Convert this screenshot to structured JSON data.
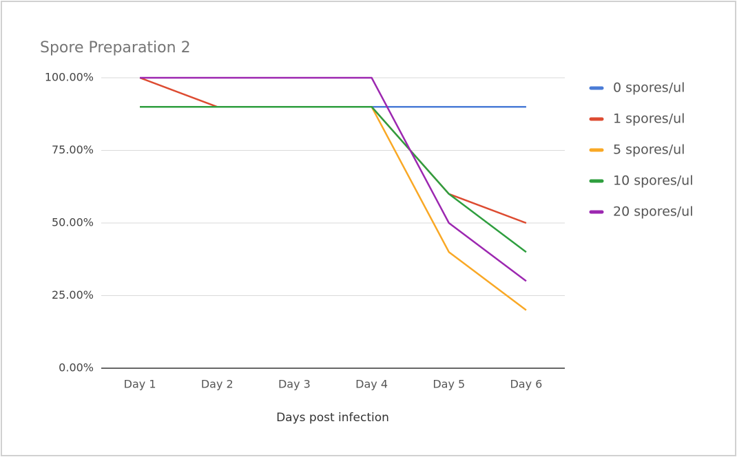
{
  "chart_data": {
    "type": "line",
    "title": "Spore Preparation 2",
    "x_label": "Days post infection",
    "categories": [
      "Day 1",
      "Day 2",
      "Day 3",
      "Day 4",
      "Day 5",
      "Day 6"
    ],
    "series": [
      {
        "name": "0 spores/ul",
        "color": "#4a7bd6",
        "values": [
          90,
          90,
          90,
          90,
          90,
          90
        ]
      },
      {
        "name": "1 spores/ul",
        "color": "#dd4b31",
        "values": [
          100,
          90,
          90,
          90,
          60,
          50
        ]
      },
      {
        "name": "5 spores/ul",
        "color": "#f9a825",
        "values": [
          90,
          90,
          90,
          90,
          40,
          20
        ]
      },
      {
        "name": "10 spores/ul",
        "color": "#2e9e3e",
        "values": [
          90,
          90,
          90,
          90,
          60,
          40
        ]
      },
      {
        "name": "20 spores/ul",
        "color": "#9c27b0",
        "values": [
          100,
          100,
          100,
          100,
          50,
          30
        ]
      }
    ],
    "ylim": [
      0,
      100
    ],
    "yticks": [
      {
        "value": 0,
        "label": "0.00%"
      },
      {
        "value": 25,
        "label": "25.00%"
      },
      {
        "value": 50,
        "label": "50.00%"
      },
      {
        "value": 75,
        "label": "75.00%"
      },
      {
        "value": 100,
        "label": "100.00%"
      }
    ],
    "grid": true,
    "legend": "right"
  }
}
